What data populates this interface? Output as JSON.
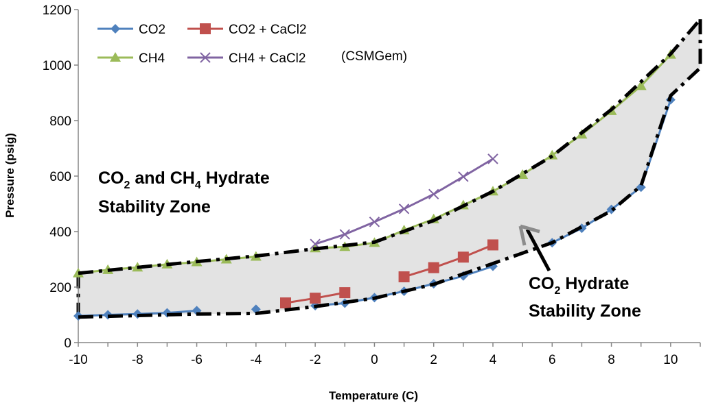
{
  "chart_data": {
    "type": "line",
    "xlabel": "Temperature (C)",
    "ylabel": "Pressure (psig)",
    "xlim": [
      -10,
      11
    ],
    "ylim": [
      0,
      1200
    ],
    "x_ticks": [
      -10,
      -8,
      -6,
      -4,
      -2,
      0,
      2,
      4,
      6,
      8,
      10
    ],
    "y_ticks": [
      0,
      200,
      400,
      600,
      800,
      1000,
      1200
    ],
    "series": [
      {
        "name": "CO2",
        "color": "#4F81BD",
        "marker": "diamond",
        "segments": [
          [
            [
              -10,
              96
            ],
            [
              -9,
              100
            ],
            [
              -8,
              103
            ],
            [
              -7,
              107
            ],
            [
              -6,
              115
            ]
          ],
          [
            [
              -4,
              120
            ]
          ],
          [
            [
              -2,
              133
            ],
            [
              -1,
              142
            ],
            [
              0,
              162
            ],
            [
              1,
              185
            ],
            [
              2,
              212
            ],
            [
              3,
              240
            ],
            [
              4,
              275
            ]
          ],
          [
            [
              6,
              360
            ],
            [
              7,
              412
            ],
            [
              8,
              480
            ],
            [
              9,
              560
            ],
            [
              10,
              875
            ]
          ]
        ]
      },
      {
        "name": "CO2 + CaCl2",
        "color": "#C0504D",
        "marker": "square",
        "segments": [
          [
            [
              -3,
              143
            ],
            [
              -2,
              160
            ],
            [
              -1,
              180
            ]
          ],
          [
            [
              1,
              237
            ],
            [
              2,
              270
            ],
            [
              3,
              308
            ],
            [
              4,
              352
            ]
          ]
        ]
      },
      {
        "name": "CH4",
        "color": "#9BBB59",
        "marker": "triangle",
        "segments": [
          [
            [
              -10,
              250
            ],
            [
              -9,
              262
            ],
            [
              -8,
              271
            ],
            [
              -7,
              282
            ],
            [
              -6,
              290
            ],
            [
              -5,
              300
            ],
            [
              -4,
              310
            ]
          ],
          [
            [
              -2,
              340
            ],
            [
              -1,
              345
            ],
            [
              0,
              360
            ],
            [
              1,
              405
            ],
            [
              2,
              445
            ],
            [
              3,
              495
            ],
            [
              4,
              545
            ],
            [
              5,
              605
            ],
            [
              6,
              675
            ],
            [
              7,
              750
            ],
            [
              8,
              835
            ],
            [
              9,
              925
            ],
            [
              10,
              1038
            ]
          ]
        ]
      },
      {
        "name": "CH4 + CaCl2",
        "color": "#8064A2",
        "marker": "x",
        "segments": [
          [
            [
              -2,
              355
            ],
            [
              -1,
              390
            ],
            [
              0,
              435
            ],
            [
              1,
              482
            ],
            [
              2,
              535
            ],
            [
              3,
              598
            ],
            [
              4,
              662
            ]
          ]
        ]
      }
    ],
    "legend_note": "(CSMGem)",
    "zone_boundary": {
      "upper": [
        [
          -10,
          250
        ],
        [
          -6,
          292
        ],
        [
          -4,
          312
        ],
        [
          -2,
          338
        ],
        [
          0,
          362
        ],
        [
          2,
          440
        ],
        [
          4,
          545
        ],
        [
          6,
          672
        ],
        [
          8,
          840
        ],
        [
          10,
          1040
        ],
        [
          11,
          1165
        ]
      ],
      "lower": [
        [
          -10,
          92
        ],
        [
          -6,
          103
        ],
        [
          -4,
          105
        ],
        [
          -2,
          130
        ],
        [
          0,
          160
        ],
        [
          2,
          210
        ],
        [
          4,
          285
        ],
        [
          6,
          360
        ],
        [
          8,
          475
        ],
        [
          9,
          565
        ],
        [
          10,
          890
        ],
        [
          11,
          990
        ]
      ]
    },
    "annotations": {
      "zone1_line1_a": "CO",
      "zone1_line1_sub1": "2",
      "zone1_line1_b": " and CH",
      "zone1_line1_sub2": "4",
      "zone1_line1_c": " Hydrate",
      "zone1_line2": "Stability Zone",
      "zone2_line1_a": "CO",
      "zone2_line1_sub": "2",
      "zone2_line1_b": " Hydrate",
      "zone2_line2": "Stability Zone"
    }
  }
}
